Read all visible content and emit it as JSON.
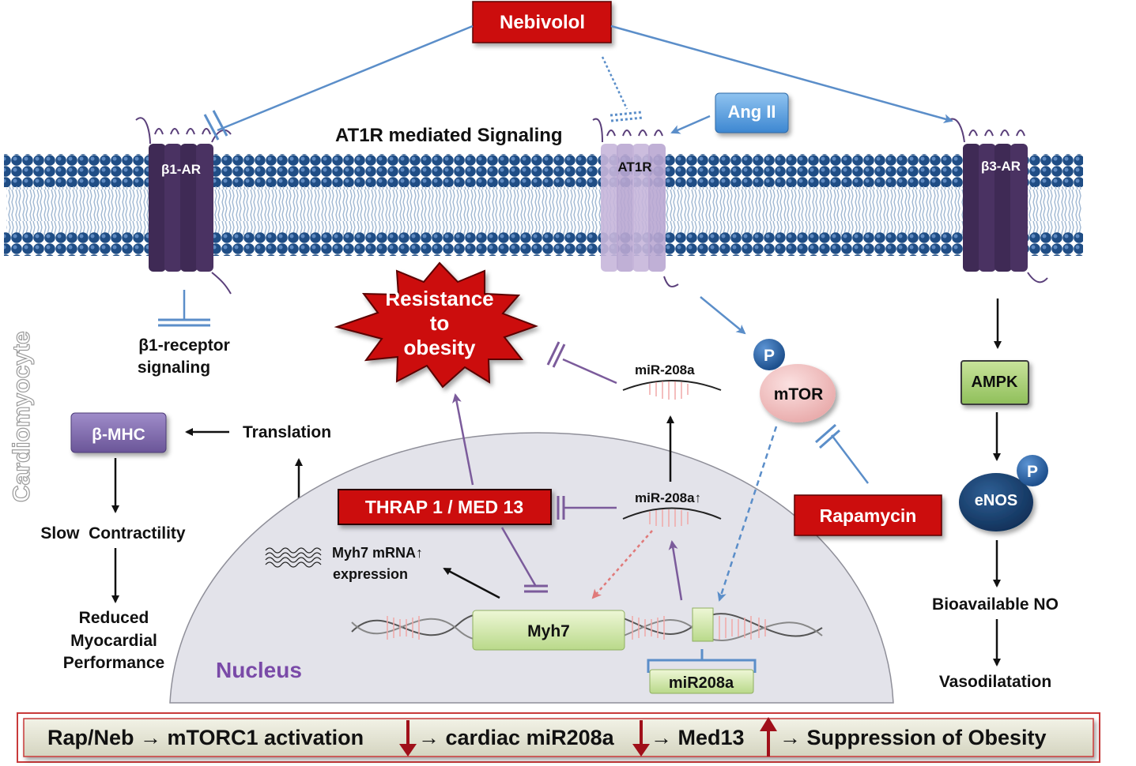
{
  "labels": {
    "nebivolol": "Nebivolol",
    "ang_ii": "Ang II",
    "at1r_signaling": "AT1R mediated Signaling",
    "b1ar": "β1-AR",
    "at1r": "AT1R",
    "b3ar": "β3-AR",
    "b1_receptor_line1": "β1-receptor",
    "b1_receptor_line2": "signaling",
    "cardiomyocyte": "Cardiomyocyte",
    "resistance_line1": "Resistance",
    "resistance_line2": "to",
    "resistance_line3": "obesity",
    "mir208a_top": "miR-208a",
    "mir208a_mid": "miR-208a",
    "up_arrow": "↑",
    "p": "P",
    "mtor": "mTOR",
    "ampk": "AMPK",
    "enos": "eNOS",
    "bmhc": "β-MHC",
    "translation": "Translation",
    "slow_contractility": "Slow  Contractility",
    "reduced_line1": "Reduced",
    "reduced_line2": "Myocardial",
    "reduced_line3": "Performance",
    "thrap": "THRAP 1 / MED 13",
    "rapamycin": "Rapamycin",
    "myh7_mrna_line1": "Myh7 mRNA",
    "myh7_mrna_line2": "expression",
    "myh7": "Myh7",
    "mir208a_gene": "miR208a",
    "nucleus": "Nucleus",
    "bioavailable_no": "Bioavailable NO",
    "vasodilatation": "Vasodilatation"
  },
  "bottom_bar": {
    "part1": "Rap/Neb → mTORC1 activation",
    "part2": "→ cardiac miR208a",
    "part3": "→ Med13",
    "part4": "→ Suppression of Obesity"
  },
  "colors": {
    "red_box": "#cc0e0e",
    "blue_line": "#5b8ec9",
    "purple_line": "#7b5b9b",
    "membrane_blue": "#1f4d85",
    "green_box": "#d8ebb1",
    "purple_box": "#7d68a8",
    "nucleus_fill": "#e2e2ea",
    "nucleus_text": "#7a4aa8",
    "dark_red_arrow": "#a0101a"
  }
}
